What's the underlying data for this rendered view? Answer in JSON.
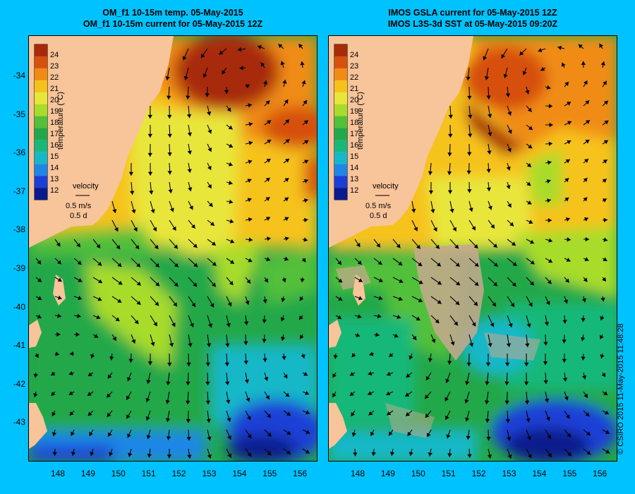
{
  "left_panel": {
    "title_line1": "OM_f1 10-15m temp. 05-May-2015",
    "title_line2": "OM_f1 10-15m current for 05-May-2015 12Z"
  },
  "right_panel": {
    "title_line1": "IMOS GSLA current for 05-May-2015 12Z",
    "title_line2": "IMOS L3S-3d SST at 05-May-2015 09:20Z"
  },
  "colorbar": {
    "label": "temperature (°C)",
    "ticks": [
      "24",
      "23",
      "22",
      "21",
      "20",
      "19",
      "18",
      "17",
      "16",
      "15",
      "14",
      "13",
      "12"
    ]
  },
  "velocity_legend": {
    "title": "velocity",
    "speed": "0.5 m/s",
    "duration": "0.5 d"
  },
  "latitude_labels": [
    "-34",
    "-35",
    "-36",
    "-37",
    "-38",
    "-39",
    "-40",
    "-41",
    "-42",
    "-43"
  ],
  "longitude_labels": [
    "148",
    "149",
    "150",
    "151",
    "152",
    "153",
    "154",
    "155",
    "156"
  ],
  "copyright": "© CSIRO 2015   11-May-2015 11:48:28",
  "colors": {
    "background": "#00c2ff",
    "land": "#f8c49a",
    "no_data": "#c8a88e",
    "scale": [
      "#0a1a8c",
      "#1a3fd6",
      "#1f86e8",
      "#14b8c8",
      "#18b87a",
      "#22a84a",
      "#52c03a",
      "#a8dc2a",
      "#e8e63a",
      "#f6c21a",
      "#f08c14",
      "#d6500e",
      "#a82a08"
    ]
  }
}
